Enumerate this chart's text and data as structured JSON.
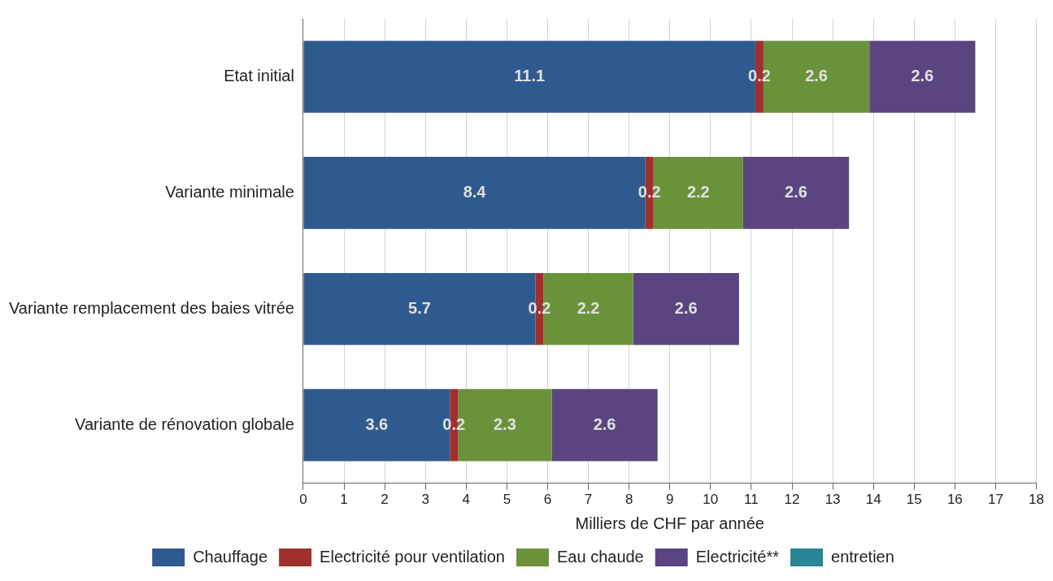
{
  "chart_data": {
    "type": "bar",
    "orientation": "horizontal",
    "stacked": true,
    "xlabel": "Milliers de CHF par année",
    "categories": [
      "Etat initial",
      "Variante minimale",
      "Variante remplacement des baies vitrée",
      "Variante de rénovation globale"
    ],
    "series": [
      {
        "name": "Chauffage",
        "color": "#2f5a8f",
        "values": [
          11.1,
          8.4,
          5.7,
          3.6
        ],
        "value_labels": [
          "11.1",
          "8.4",
          "5.7",
          "3.6"
        ]
      },
      {
        "name": "Electricité pour ventilation",
        "color": "#a0302e",
        "values": [
          0.2,
          0.2,
          0.2,
          0.2
        ],
        "value_labels": [
          "0.2",
          "0.2",
          "0.2",
          "0.2"
        ]
      },
      {
        "name": "Eau chaude",
        "color": "#6a923a",
        "values": [
          2.6,
          2.2,
          2.2,
          2.3
        ],
        "value_labels": [
          "2.6",
          "2.2",
          "2.2",
          "2.3"
        ]
      },
      {
        "name": "Electricité**",
        "color": "#5a4580",
        "values": [
          2.6,
          2.6,
          2.6,
          2.6
        ],
        "value_labels": [
          "2.6",
          "2.6",
          "2.6",
          "2.6"
        ]
      },
      {
        "name": "entretien",
        "color": "#2a8597",
        "values": [
          0,
          0,
          0,
          0
        ],
        "value_labels": [
          null,
          null,
          null,
          null
        ]
      }
    ],
    "xlim": [
      0,
      18
    ],
    "xticks": [
      0,
      1,
      2,
      3,
      4,
      5,
      6,
      7,
      8,
      9,
      10,
      11,
      12,
      13,
      14,
      15,
      16,
      17,
      18
    ],
    "grid": "x",
    "legend": "bottom"
  }
}
